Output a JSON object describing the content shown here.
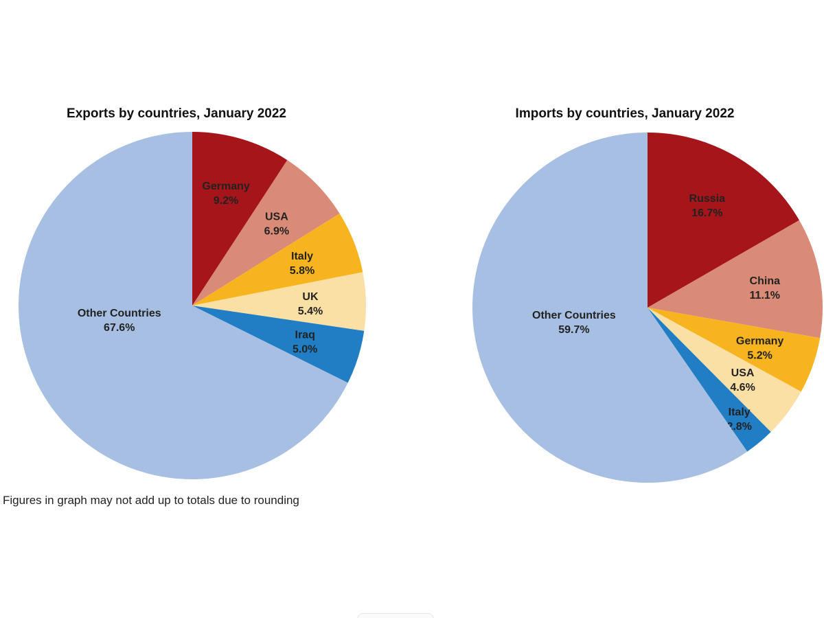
{
  "chart_data": [
    {
      "type": "pie",
      "title": "Exports by countries, January 2022",
      "slices": [
        {
          "label": "Germany",
          "value": 9.2,
          "display": "9.2%",
          "color": "#a5151a"
        },
        {
          "label": "USA",
          "value": 6.9,
          "display": "6.9%",
          "color": "#d98b77"
        },
        {
          "label": "Italy",
          "value": 5.8,
          "display": "5.8%",
          "color": "#f7b41f"
        },
        {
          "label": "UK",
          "value": 5.4,
          "display": "5.4%",
          "color": "#fbe0a6"
        },
        {
          "label": "Iraq",
          "value": 5.0,
          "display": "5.0%",
          "color": "#217dc4"
        },
        {
          "label": "Other Countries",
          "value": 67.6,
          "display": "67.6%",
          "color": "#a6bfe3"
        }
      ]
    },
    {
      "type": "pie",
      "title": "Imports by countries, January 2022",
      "slices": [
        {
          "label": "Russia",
          "value": 16.7,
          "display": "16.7%",
          "color": "#a5151a"
        },
        {
          "label": "China",
          "value": 11.1,
          "display": "11.1%",
          "color": "#d98b77"
        },
        {
          "label": "Germany",
          "value": 5.2,
          "display": "5.2%",
          "color": "#f7b41f"
        },
        {
          "label": "USA",
          "value": 4.6,
          "display": "4.6%",
          "color": "#fbe0a6"
        },
        {
          "label": "Italy",
          "value": 2.8,
          "display": "2.8%",
          "color": "#217dc4"
        },
        {
          "label": "Other Countries",
          "value": 59.7,
          "display": "59.7%",
          "color": "#a6bfe3"
        }
      ]
    }
  ],
  "footnote": "Figures in graph may not add up to totals due to rounding"
}
